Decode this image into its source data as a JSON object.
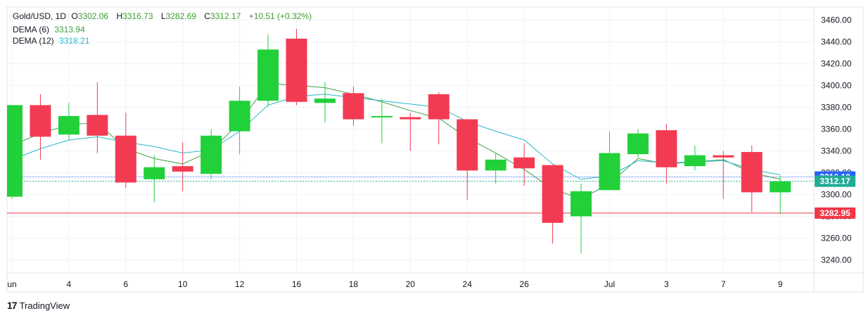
{
  "header": {
    "symbol": "Gold/USD, 1D",
    "o_label": "O",
    "o": "3302.06",
    "h_label": "H",
    "h": "3316.73",
    "l_label": "L",
    "l": "3282.69",
    "c_label": "C",
    "c": "3312.17",
    "change": "+10.51 (+0.32%)"
  },
  "indicators": [
    {
      "label": "DEMA (6)",
      "value": "3313.94",
      "color": "#43a047"
    },
    {
      "label": "DEMA (12)",
      "value": "3318.21",
      "color": "#26b8c8"
    }
  ],
  "brand": {
    "logo": "17",
    "name": "TradingView"
  },
  "colors": {
    "up": "#22d03a",
    "down": "#f23b52",
    "grid": "#f0f3fa",
    "text": "#131722",
    "axis": "#e0e3eb"
  },
  "chart_data": {
    "type": "candlestick",
    "title": "Gold/USD, 1D",
    "ylim": [
      3228,
      3472
    ],
    "y_ticks": [
      3240,
      3260,
      3280,
      3300,
      3320,
      3340,
      3360,
      3380,
      3400,
      3420,
      3440,
      3460
    ],
    "x_ticks": [
      {
        "i": 0,
        "label": "un"
      },
      {
        "i": 2,
        "label": "4"
      },
      {
        "i": 4,
        "label": "6"
      },
      {
        "i": 6,
        "label": "10"
      },
      {
        "i": 8,
        "label": "12"
      },
      {
        "i": 10,
        "label": "16"
      },
      {
        "i": 12,
        "label": "18"
      },
      {
        "i": 14,
        "label": "20"
      },
      {
        "i": 16,
        "label": "24"
      },
      {
        "i": 18,
        "label": "26"
      },
      {
        "i": 21,
        "label": "Jul"
      },
      {
        "i": 23,
        "label": "3"
      },
      {
        "i": 25,
        "label": "7"
      },
      {
        "i": 27,
        "label": "9"
      }
    ],
    "candles": [
      {
        "o": 3298,
        "h": 3382,
        "l": 3296,
        "c": 3382
      },
      {
        "o": 3382,
        "h": 3392,
        "l": 3332,
        "c": 3353
      },
      {
        "o": 3355,
        "h": 3384,
        "l": 3350,
        "c": 3372
      },
      {
        "o": 3373,
        "h": 3403,
        "l": 3338,
        "c": 3354
      },
      {
        "o": 3354,
        "h": 3375,
        "l": 3306,
        "c": 3311
      },
      {
        "o": 3314,
        "h": 3336,
        "l": 3293,
        "c": 3325
      },
      {
        "o": 3326,
        "h": 3348,
        "l": 3303,
        "c": 3321
      },
      {
        "o": 3319,
        "h": 3360,
        "l": 3314,
        "c": 3354
      },
      {
        "o": 3358,
        "h": 3399,
        "l": 3337,
        "c": 3386
      },
      {
        "o": 3386,
        "h": 3447,
        "l": 3381,
        "c": 3433
      },
      {
        "o": 3443,
        "h": 3452,
        "l": 3382,
        "c": 3385
      },
      {
        "o": 3384,
        "h": 3403,
        "l": 3366,
        "c": 3388
      },
      {
        "o": 3393,
        "h": 3399,
        "l": 3363,
        "c": 3369
      },
      {
        "o": 3371,
        "h": 3388,
        "l": 3347,
        "c": 3372
      },
      {
        "o": 3371,
        "h": 3375,
        "l": 3340,
        "c": 3369
      },
      {
        "o": 3392,
        "h": 3394,
        "l": 3346,
        "c": 3369
      },
      {
        "o": 3369,
        "h": 3369,
        "l": 3295,
        "c": 3322
      },
      {
        "o": 3322,
        "h": 3338,
        "l": 3310,
        "c": 3332
      },
      {
        "o": 3334,
        "h": 3347,
        "l": 3308,
        "c": 3324
      },
      {
        "o": 3327,
        "h": 3327,
        "l": 3255,
        "c": 3274
      },
      {
        "o": 3280,
        "h": 3310,
        "l": 3246,
        "c": 3303
      },
      {
        "o": 3304,
        "h": 3358,
        "l": 3304,
        "c": 3338
      },
      {
        "o": 3337,
        "h": 3360,
        "l": 3334,
        "c": 3356
      },
      {
        "o": 3359,
        "h": 3365,
        "l": 3310,
        "c": 3325
      },
      {
        "o": 3326,
        "h": 3345,
        "l": 3322,
        "c": 3336
      },
      {
        "o": 3336,
        "h": 3340,
        "l": 3296,
        "c": 3334
      },
      {
        "o": 3339,
        "h": 3345,
        "l": 3284,
        "c": 3302
      },
      {
        "o": 3302,
        "h": 3317,
        "l": 3282,
        "c": 3312
      }
    ],
    "series": [
      {
        "name": "DEMA (6)",
        "color": "#43a047",
        "values": [
          3345,
          3356,
          3364,
          3366,
          3342,
          3333,
          3328,
          3340,
          3366,
          3402,
          3400,
          3398,
          3392,
          3385,
          3377,
          3370,
          3352,
          3338,
          3323,
          3305,
          3296,
          3310,
          3333,
          3328,
          3330,
          3332,
          3320,
          3314
        ]
      },
      {
        "name": "DEMA (12)",
        "color": "#26b8c8",
        "values": [
          3332,
          3342,
          3350,
          3353,
          3348,
          3344,
          3338,
          3341,
          3358,
          3382,
          3390,
          3392,
          3389,
          3386,
          3383,
          3380,
          3367,
          3358,
          3350,
          3328,
          3314,
          3317,
          3331,
          3329,
          3330,
          3331,
          3323,
          3318
        ]
      }
    ],
    "lines": [
      {
        "name": "last-price",
        "value": 3316.1,
        "label": "3316.10",
        "color": "#2962ff"
      },
      {
        "name": "close",
        "value": 3312.17,
        "label": "3312.17",
        "color": "#22ab94"
      },
      {
        "name": "low-line",
        "value": 3282.95,
        "label": "3282.95",
        "color": "#f23645"
      }
    ]
  }
}
